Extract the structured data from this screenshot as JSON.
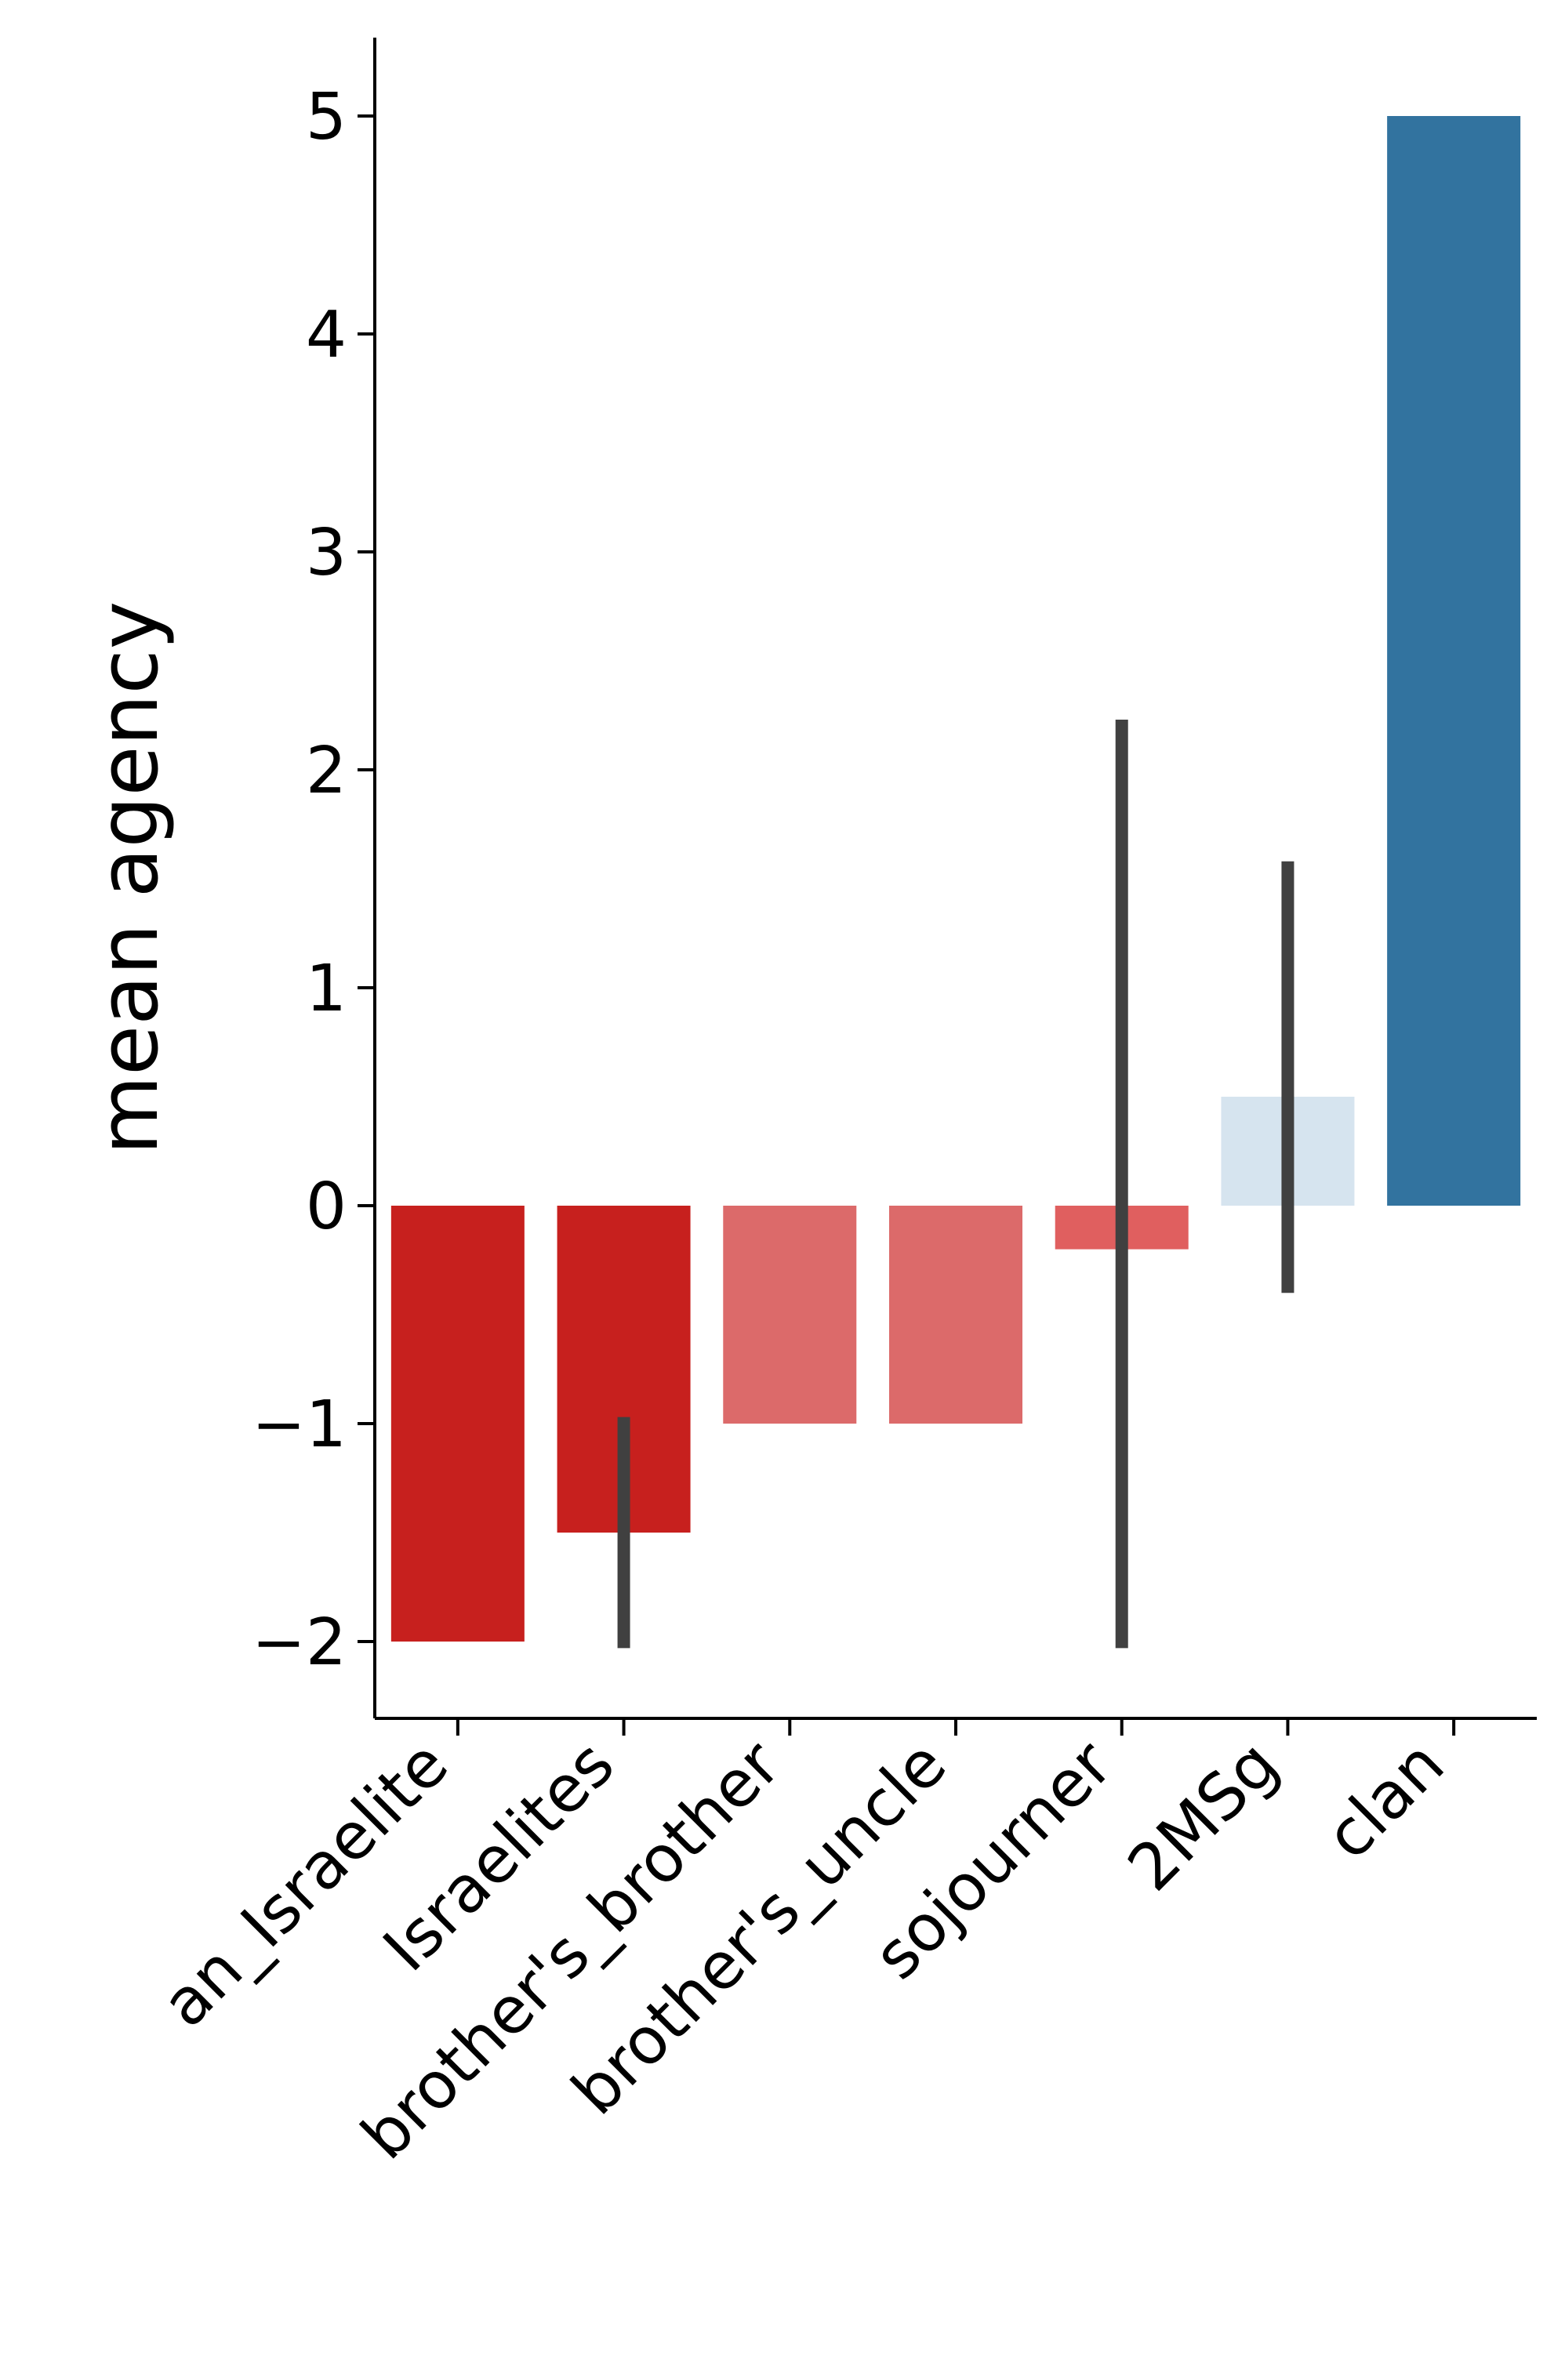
{
  "chart_data": {
    "type": "bar",
    "title": "",
    "xlabel": "",
    "ylabel": "mean agency",
    "categories": [
      "an_Israelite",
      "Israelites",
      "brother's_brother",
      "brother's_uncle",
      "sojourner",
      "2MSg",
      "clan"
    ],
    "values": [
      -2,
      -1.5,
      -1,
      -1,
      -0.2,
      0.5,
      5
    ],
    "error_bars": [
      null,
      {
        "low": -2.03,
        "high": -0.97
      },
      null,
      null,
      {
        "low": -2.03,
        "high": 2.23
      },
      {
        "low": -0.4,
        "high": 1.58
      },
      null
    ],
    "bar_colors": [
      "#c7201e",
      "#c7201e",
      "#dc6a6a",
      "#dc6a6a",
      "#e05f5f",
      "#d6e4ef",
      "#32739f"
    ],
    "error_bar_color": "#404040",
    "ylim": [
      -2.35,
      5.35
    ],
    "yticks": [
      -2,
      -1,
      0,
      1,
      2,
      3,
      4,
      5
    ],
    "ytick_labels": [
      "−2",
      "−1",
      "0",
      "1",
      "2",
      "3",
      "4",
      "5"
    ],
    "grid": false,
    "legend": "none",
    "spines": "left-bottom"
  }
}
